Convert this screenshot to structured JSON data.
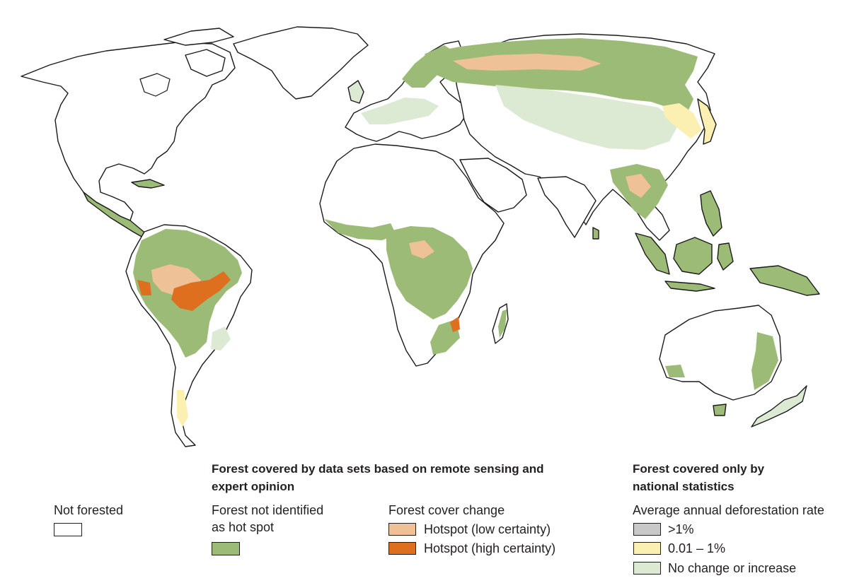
{
  "map": {
    "colors": {
      "ocean": "#ffffff",
      "not_forested": "#ffffff",
      "forest": "#9cbb76",
      "hotspot_low": "#efc197",
      "hotspot_high": "#dd6f1f",
      "defor_high": "#c8c8c8",
      "defor_mid": "#fbefb2",
      "no_change": "#dce9d3"
    }
  },
  "legend": {
    "remote_sensing_heading": "Forest covered by data sets based on remote sensing and expert opinion",
    "national_heading": "Forest covered only by national statistics",
    "not_forested": "Not forested",
    "forest_not_hotspot": "Forest not identified as hot spot",
    "forest_cover_change": "Forest cover change",
    "hotspot_low": "Hotspot (low certainty)",
    "hotspot_high": "Hotspot (high certainty)",
    "avg_rate": "Average annual deforestation rate",
    "rate_high": ">1%",
    "rate_mid": "0.01 – 1%",
    "rate_none": "No change or increase"
  }
}
